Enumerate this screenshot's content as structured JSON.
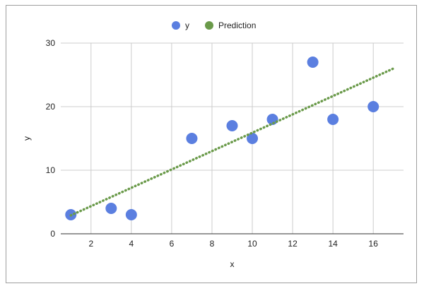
{
  "chart_data": {
    "type": "scatter",
    "title": "",
    "xlabel": "x",
    "ylabel": "y",
    "xlim": [
      0.5,
      17.5
    ],
    "ylim": [
      0,
      30
    ],
    "x_ticks": [
      2,
      4,
      6,
      8,
      10,
      12,
      14,
      16
    ],
    "y_ticks": [
      0,
      10,
      20,
      30
    ],
    "grid": true,
    "legend_position": "top",
    "series": [
      {
        "name": "y",
        "type": "scatter",
        "color": "#5b7fe0",
        "points": [
          {
            "x": 1,
            "y": 3
          },
          {
            "x": 3,
            "y": 4
          },
          {
            "x": 4,
            "y": 3
          },
          {
            "x": 7,
            "y": 15
          },
          {
            "x": 9,
            "y": 17
          },
          {
            "x": 10,
            "y": 15
          },
          {
            "x": 11,
            "y": 18
          },
          {
            "x": 13,
            "y": 27
          },
          {
            "x": 14,
            "y": 18
          },
          {
            "x": 16,
            "y": 20
          }
        ]
      },
      {
        "name": "Prediction",
        "type": "line",
        "style": "dotted",
        "color": "#6a9a4a",
        "points": [
          {
            "x": 1,
            "y": 2.9
          },
          {
            "x": 17,
            "y": 26
          }
        ]
      }
    ]
  }
}
